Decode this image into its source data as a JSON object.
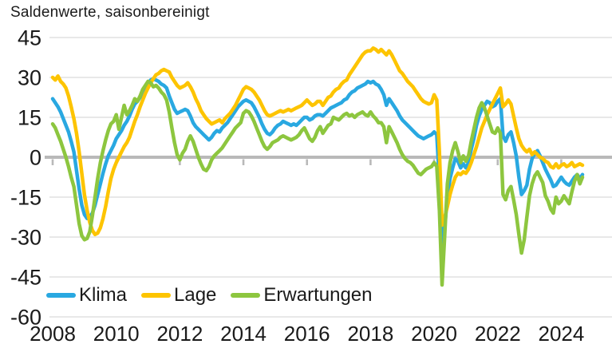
{
  "title": "Saldenwerte, saisonbereinigt",
  "colors": {
    "klima": "#29A8E1",
    "lage": "#FDC400",
    "erwartungen": "#8DC63F",
    "gridline": "#D9D9D9",
    "zero_line": "#B9B9B9",
    "text": "#1A1A1A"
  },
  "chart_data": {
    "type": "line",
    "title": "Saldenwerte, saisonbereinigt",
    "frequency": "monthly",
    "x_start": "2008-01",
    "x_end": "2024-09",
    "xlabel": "",
    "ylabel": "Saldenwerte, saisonbereinigt",
    "ylim": [
      -60,
      45
    ],
    "y_ticks": [
      45,
      30,
      15,
      0,
      -15,
      -30,
      -45,
      -60
    ],
    "x_tick_labels": [
      "2008",
      "2010",
      "2012",
      "2014",
      "2016",
      "2018",
      "2020",
      "2022",
      "2024"
    ],
    "grid": "horizontal",
    "legend_position": "inside-bottom-left",
    "series": [
      {
        "name": "Klima",
        "color": "#29A8E1",
        "values": [
          22,
          20.5,
          19,
          17,
          14.5,
          12,
          9.5,
          6,
          2,
          -5,
          -12,
          -18,
          -21.5,
          -23,
          -22.5,
          -21,
          -18,
          -14,
          -10,
          -6,
          -2.5,
          0.5,
          2.5,
          4.5,
          7,
          8.5,
          10,
          12,
          13.5,
          15.5,
          18,
          20,
          21,
          22.5,
          24.5,
          26,
          27.5,
          29,
          29.5,
          29,
          28.5,
          27.5,
          27,
          26,
          23,
          20.5,
          18,
          16.5,
          17,
          17.5,
          18,
          17.5,
          15.5,
          13,
          11.5,
          10.5,
          9.5,
          8.5,
          7.5,
          6.5,
          7.5,
          9,
          10,
          9.5,
          11,
          12,
          13,
          14.5,
          16,
          17.5,
          19,
          20,
          21,
          21.5,
          21,
          20.5,
          19,
          17,
          15,
          12.5,
          10.5,
          9,
          8.5,
          9.5,
          11,
          12,
          12.5,
          13.5,
          13,
          12.5,
          12,
          12.5,
          12,
          13,
          14,
          15,
          15,
          14,
          14.5,
          15.5,
          16,
          16,
          15.5,
          16.5,
          17.5,
          18.5,
          19,
          19.5,
          20,
          20.5,
          21.5,
          22,
          23.5,
          24.5,
          25,
          26,
          26.5,
          27,
          27.5,
          28.5,
          28,
          28.5,
          27.5,
          27,
          25.5,
          23.5,
          19.5,
          22,
          20.5,
          19,
          17.5,
          15.5,
          14,
          13,
          12,
          11,
          10,
          9,
          8,
          7.5,
          7,
          7.5,
          8,
          8.5,
          9.5,
          8.5,
          -9,
          -34.5,
          -26,
          -15,
          -8,
          -4,
          -0.5,
          -1.5,
          -4,
          -2.5,
          -4,
          -2,
          3,
          7,
          12,
          15.5,
          18,
          19.5,
          21,
          20.5,
          19,
          19.5,
          21,
          22,
          8,
          6,
          8.5,
          9.5,
          5.5,
          0.5,
          -7.5,
          -14,
          -12.5,
          -10.5,
          -4.5,
          -0.5,
          1.5,
          2.5,
          0.5,
          -2,
          -4.5,
          -6.5,
          -8.5,
          -11,
          -10.5,
          -9,
          -7.5,
          -9,
          -10,
          -10.5,
          -9,
          -7.5,
          -6.5,
          -8,
          -6.5
        ]
      },
      {
        "name": "Lage",
        "color": "#FDC400",
        "values": [
          30,
          29,
          30.5,
          28.5,
          27.5,
          26,
          23,
          19,
          14.5,
          9,
          2,
          -6,
          -14,
          -20,
          -24.5,
          -27.5,
          -29,
          -28.5,
          -26.5,
          -23,
          -18.5,
          -13,
          -8,
          -4.5,
          -2,
          0,
          2,
          4,
          5.5,
          7.5,
          10.5,
          13.5,
          16,
          19,
          21.5,
          24,
          26,
          28,
          29.5,
          31,
          31.5,
          32.5,
          33,
          32.5,
          32,
          30,
          28.5,
          27,
          26,
          26.5,
          27,
          28,
          26.5,
          24.5,
          22,
          20,
          17.5,
          16,
          14.5,
          13.5,
          12.5,
          13,
          13.5,
          14,
          13,
          14.5,
          15.5,
          16.5,
          18,
          19.5,
          21.5,
          23.5,
          25.5,
          26.5,
          26,
          25.5,
          24.5,
          23,
          21.5,
          19.5,
          17.5,
          16,
          15.5,
          16,
          16.5,
          17,
          17.5,
          17,
          17.5,
          18,
          17.5,
          18,
          18.5,
          19,
          19.5,
          20.5,
          21.5,
          20.5,
          19.5,
          20,
          21,
          21,
          19.5,
          21,
          22.5,
          23,
          24.5,
          25.5,
          26,
          27.5,
          28.5,
          29,
          31,
          32.5,
          34,
          35.5,
          37,
          38.5,
          39.5,
          40,
          40,
          41,
          40.5,
          39.5,
          40.5,
          39.5,
          38.5,
          40,
          38.5,
          36.5,
          34.5,
          32.5,
          31.5,
          30,
          28.5,
          27.5,
          26.5,
          25,
          23.5,
          22,
          21,
          20.5,
          20,
          20.5,
          23.5,
          21.5,
          2,
          -25.5,
          -22.5,
          -18.5,
          -14,
          -10.5,
          -7.5,
          -6,
          -6.5,
          -5.5,
          -6,
          -4.5,
          -2,
          1,
          4,
          7.5,
          11,
          13.5,
          16,
          18,
          20,
          22,
          24,
          26,
          19,
          20,
          21.5,
          20,
          15.5,
          11,
          7,
          4.5,
          3,
          2,
          3,
          1,
          2,
          1,
          0,
          -0.5,
          -1.5,
          -2,
          -3.5,
          -4,
          -2.5,
          -4,
          -3,
          -2.5,
          -3.5,
          -3,
          -2,
          -3.5,
          -3,
          -2.5,
          -3
        ]
      },
      {
        "name": "Erwartungen",
        "color": "#8DC63F",
        "values": [
          12.5,
          11,
          8.5,
          6,
          3,
          0,
          -3.5,
          -7.5,
          -11,
          -18,
          -25,
          -29.5,
          -31,
          -30.5,
          -28,
          -22,
          -15,
          -8,
          -2,
          2.5,
          6.5,
          10,
          12.5,
          13.5,
          16,
          10.5,
          15,
          19.5,
          16,
          17.5,
          19.5,
          22,
          21,
          23,
          25.5,
          27,
          28.5,
          28,
          26.5,
          27,
          26,
          24.5,
          23.5,
          21.5,
          17,
          11,
          5.5,
          1,
          -1,
          1.5,
          3,
          6,
          8,
          6,
          3,
          0,
          -2.5,
          -4.5,
          -5,
          -3.5,
          -1,
          0.5,
          1.5,
          2.5,
          3.5,
          5,
          6.5,
          8,
          9.5,
          11,
          12,
          13,
          16.5,
          17.5,
          17,
          15.5,
          13.5,
          11,
          8.5,
          6,
          4,
          3,
          4,
          5.5,
          6,
          6.5,
          7.5,
          8,
          7.5,
          7,
          6.5,
          7,
          7.5,
          8.5,
          10,
          11,
          9,
          7,
          6,
          7.5,
          10,
          11.5,
          9,
          10.5,
          12,
          12.5,
          15,
          14.5,
          14,
          15,
          16,
          16.5,
          15.5,
          16,
          15,
          16,
          16.5,
          17,
          16,
          15.5,
          17,
          15.5,
          14.5,
          13,
          13,
          11.5,
          5.5,
          11.5,
          9.5,
          7.5,
          5.5,
          3,
          1,
          -0.5,
          -1.5,
          -2,
          -3,
          -4.5,
          -6,
          -6.5,
          -5.5,
          -4.5,
          -4,
          -3.5,
          -2,
          -3.5,
          -20,
          -48,
          -29,
          -10,
          -2,
          2.5,
          5.5,
          2,
          -2,
          0.5,
          -1.5,
          0.5,
          6,
          10.5,
          15,
          18.5,
          20.5,
          18.5,
          15.5,
          12.5,
          9.5,
          9,
          11,
          9,
          -14,
          -16,
          -12.5,
          -11,
          -16,
          -21.5,
          -29,
          -36,
          -31,
          -22.5,
          -14.5,
          -10,
          -7,
          -5.5,
          -7.5,
          -9.5,
          -14.5,
          -16.5,
          -19.5,
          -21,
          -15,
          -17.5,
          -16.5,
          -14.5,
          -16,
          -17.5,
          -13,
          -9,
          -6.5,
          -10,
          -7.5
        ]
      }
    ]
  },
  "legend": {
    "items": [
      "Klima",
      "Lage",
      "Erwartungen"
    ]
  }
}
